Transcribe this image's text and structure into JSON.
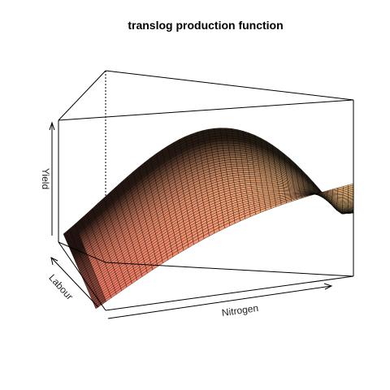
{
  "chart_data": {
    "type": "surface",
    "title": "translog production function",
    "xlabel": "Nitrogen",
    "ylabel": "Labour",
    "zlabel": "Yield",
    "grid": false,
    "box": true,
    "axes_style": "arrows-no-ticks",
    "colors": {
      "low": "#f0605a",
      "high": "#f9c483",
      "edge": "#000000"
    },
    "surface": {
      "rows": 40,
      "cols": 50
    }
  }
}
